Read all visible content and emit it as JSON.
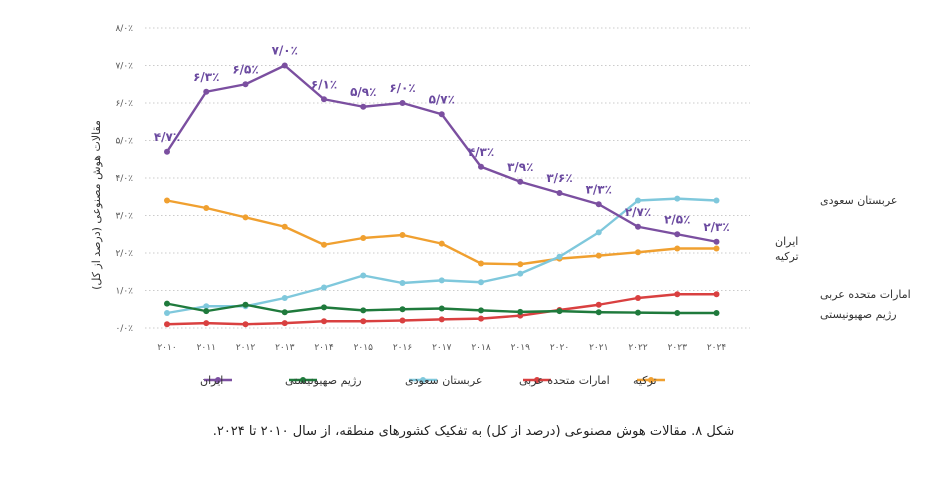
{
  "caption": "شکل ۸. مقالات هوش مصنوعی (درصد از کل) به تفکیک کشورهای منطقه، از سال ۲۰۱۰ تا ۲۰۲۴.",
  "chart_data": {
    "type": "line",
    "ylabel": "مقالات هوش مصنوعی (درصد از کل)",
    "ylim": [
      0,
      8
    ],
    "yticks": [
      0,
      1,
      2,
      3,
      4,
      5,
      6,
      7,
      8
    ],
    "ytick_labels": [
      "۰/۰٪",
      "۱/۰٪",
      "۲/۰٪",
      "۳/۰٪",
      "۴/۰٪",
      "۵/۰٪",
      "۶/۰٪",
      "۷/۰٪",
      "۸/۰٪"
    ],
    "x": [
      2010,
      2011,
      2012,
      2013,
      2014,
      2015,
      2016,
      2017,
      2018,
      2019,
      2020,
      2021,
      2022,
      2023,
      2024
    ],
    "x_labels": [
      "۲۰۱۰",
      "۲۰۱۱",
      "۲۰۱۲",
      "۲۰۱۳",
      "۲۰۱۴",
      "۲۰۱۵",
      "۲۰۱۶",
      "۲۰۱۷",
      "۲۰۱۸",
      "۲۰۱۹",
      "۲۰۲۰",
      "۲۰۲۱",
      "۲۰۲۲",
      "۲۰۲۳",
      "۲۰۲۴"
    ],
    "grid": "horizontal",
    "legend_position": "bottom",
    "series": [
      {
        "name": "ایران",
        "color": "#7b4fa0",
        "values": [
          4.7,
          6.3,
          6.5,
          7.0,
          6.1,
          5.9,
          6.0,
          5.7,
          4.3,
          3.9,
          3.6,
          3.3,
          2.7,
          2.5,
          2.3
        ],
        "data_labels": [
          "۴/۷٪",
          "۶/۳٪",
          "۶/۵٪",
          "۷/۰٪",
          "۶/۱٪",
          "۵/۹٪",
          "۶/۰٪",
          "۵/۷٪",
          "۴/۳٪",
          "۳/۹٪",
          "۳/۶٪",
          "۳/۳٪",
          "۲/۷٪",
          "۲/۵٪",
          "۲/۳٪"
        ],
        "end_label": "ایران"
      },
      {
        "name": "رژیم صهیونیستی",
        "color": "#1f7a3c",
        "values": [
          0.65,
          0.45,
          0.62,
          0.42,
          0.55,
          0.47,
          0.5,
          0.52,
          0.47,
          0.43,
          0.45,
          0.42,
          0.41,
          0.4,
          0.4
        ],
        "end_label": "رژیم صهیونیستی"
      },
      {
        "name": "عربستان سعودی",
        "color": "#7fc8dc",
        "values": [
          0.4,
          0.58,
          0.58,
          0.8,
          1.08,
          1.4,
          1.2,
          1.27,
          1.22,
          1.45,
          1.9,
          2.55,
          3.4,
          3.45,
          3.4
        ],
        "end_label": "عربستان سعودی"
      },
      {
        "name": "امارات متحده عربی",
        "color": "#d94040",
        "values": [
          0.1,
          0.13,
          0.1,
          0.13,
          0.18,
          0.18,
          0.2,
          0.23,
          0.25,
          0.33,
          0.48,
          0.62,
          0.8,
          0.9,
          0.9
        ],
        "end_label": "امارات متحده عربی"
      },
      {
        "name": "ترکیه",
        "color": "#f0a030",
        "values": [
          3.4,
          3.2,
          2.95,
          2.7,
          2.22,
          2.4,
          2.48,
          2.25,
          1.72,
          1.7,
          1.85,
          1.93,
          2.02,
          2.12,
          2.12
        ],
        "end_label": "ترکیه"
      }
    ]
  }
}
